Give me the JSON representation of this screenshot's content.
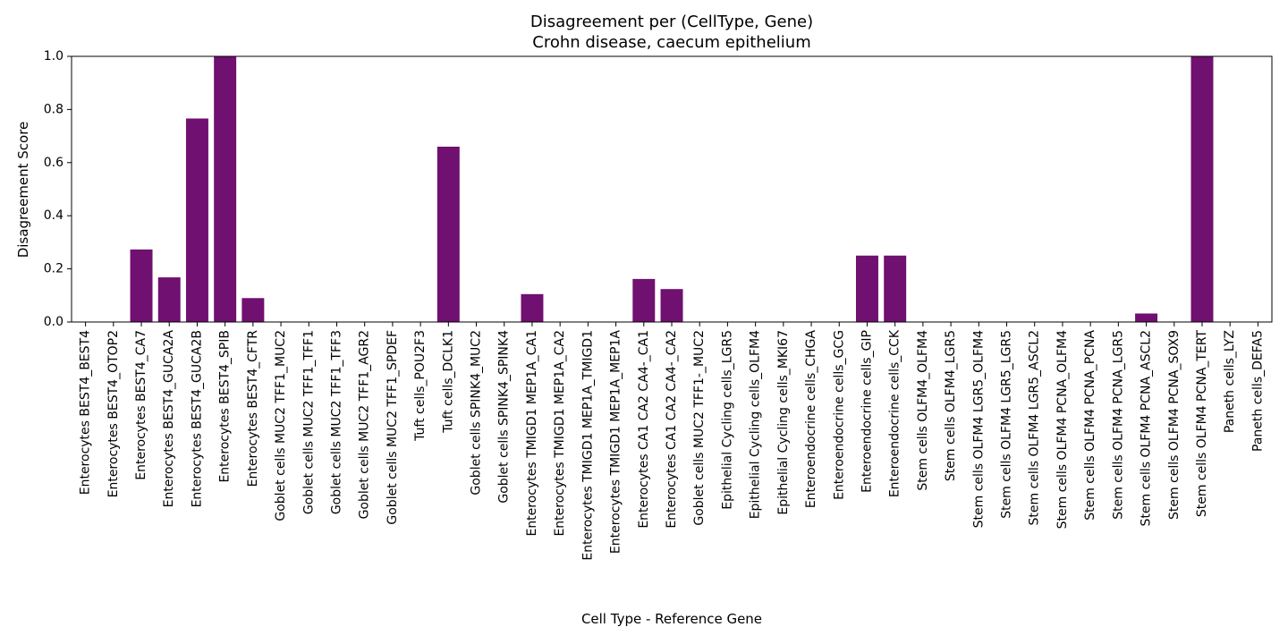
{
  "chart_data": {
    "type": "bar",
    "title": "Disagreement per (CellType, Gene)",
    "subtitle": "Crohn disease, caecum epithelium",
    "xlabel": "Cell Type - Reference Gene",
    "ylabel": "Disagreement Score",
    "ylim": [
      0,
      1.0
    ],
    "yticks": [
      "0.0",
      "0.2",
      "0.4",
      "0.6",
      "0.8",
      "1.0"
    ],
    "bar_color": "#701070",
    "grid": false,
    "categories": [
      "Enterocytes BEST4_BEST4",
      "Enterocytes BEST4_OTOP2",
      "Enterocytes BEST4_CA7",
      "Enterocytes BEST4_GUCA2A",
      "Enterocytes BEST4_GUCA2B",
      "Enterocytes BEST4_SPIB",
      "Enterocytes BEST4_CFTR",
      "Goblet cells MUC2 TFF1_MUC2",
      "Goblet cells MUC2 TFF1_TFF1",
      "Goblet cells MUC2 TFF1_TFF3",
      "Goblet cells MUC2 TFF1_AGR2",
      "Goblet cells MUC2 TFF1_SPDEF",
      "Tuft cells_POU2F3",
      "Tuft cells_DCLK1",
      "Goblet cells SPINK4_MUC2",
      "Goblet cells SPINK4_SPINK4",
      "Enterocytes TMIGD1 MEP1A_CA1",
      "Enterocytes TMIGD1 MEP1A_CA2",
      "Enterocytes TMIGD1 MEP1A_TMIGD1",
      "Enterocytes TMIGD1 MEP1A_MEP1A",
      "Enterocytes CA1 CA2 CA4-_CA1",
      "Enterocytes CA1 CA2 CA4-_CA2",
      "Goblet cells MUC2 TFF1-_MUC2",
      "Epithelial Cycling cells_LGR5",
      "Epithelial Cycling cells_OLFM4",
      "Epithelial Cycling cells_MKI67",
      "Enteroendocrine cells_CHGA",
      "Enteroendocrine cells_GCG",
      "Enteroendocrine cells_GIP",
      "Enteroendocrine cells_CCK",
      "Stem cells OLFM4_OLFM4",
      "Stem cells OLFM4_LGR5",
      "Stem cells OLFM4 LGR5_OLFM4",
      "Stem cells OLFM4 LGR5_LGR5",
      "Stem cells OLFM4 LGR5_ASCL2",
      "Stem cells OLFM4 PCNA_OLFM4",
      "Stem cells OLFM4 PCNA_PCNA",
      "Stem cells OLFM4 PCNA_LGR5",
      "Stem cells OLFM4 PCNA_ASCL2",
      "Stem cells OLFM4 PCNA_SOX9",
      "Stem cells OLFM4 PCNA_TERT",
      "Paneth cells_LYZ",
      "Paneth cells_DEFA5"
    ],
    "values": [
      0,
      0,
      0.273,
      0.168,
      0.766,
      1.0,
      0.09,
      0,
      0,
      0,
      0,
      0,
      0,
      0.66,
      0,
      0,
      0.105,
      0,
      0,
      0,
      0.162,
      0.124,
      0,
      0,
      0,
      0,
      0,
      0,
      0.25,
      0.25,
      0,
      0,
      0,
      0,
      0,
      0,
      0,
      0,
      0.032,
      0,
      1.0,
      0,
      0
    ]
  }
}
